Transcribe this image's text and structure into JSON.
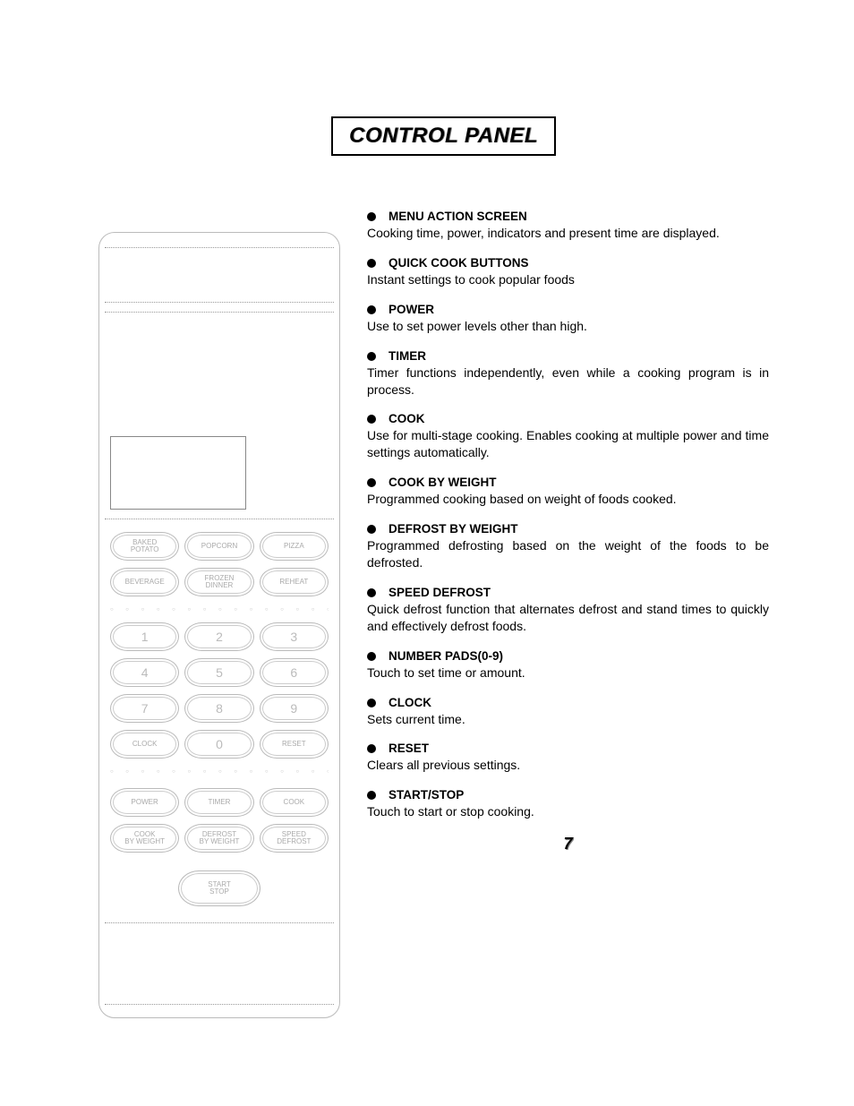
{
  "page_number": "7",
  "title": "CONTROL PANEL",
  "panel": {
    "quick_cook": [
      "BAKED\nPOTATO",
      "POPCORN",
      "PIZZA",
      "BEVERAGE",
      "FROZEN\nDINNER",
      "REHEAT"
    ],
    "numbers_row1": [
      "1",
      "2",
      "3"
    ],
    "numbers_row2": [
      "4",
      "5",
      "6"
    ],
    "numbers_row3": [
      "7",
      "8",
      "9"
    ],
    "clock": "CLOCK",
    "zero": "0",
    "reset": "RESET",
    "func_row1": [
      "POWER",
      "TIMER",
      "COOK"
    ],
    "func_row2": [
      "COOK\nBY WEIGHT",
      "DEFROST\nBY WEIGHT",
      "SPEED\nDEFROST"
    ],
    "start_stop": "START\nSTOP"
  },
  "features": [
    {
      "title": "MENU ACTION SCREEN",
      "desc": "Cooking time, power, indicators and present time are displayed."
    },
    {
      "title": "QUICK COOK BUTTONS",
      "desc": "Instant settings to cook popular foods"
    },
    {
      "title": "POWER",
      "desc": "Use to set power levels other than high."
    },
    {
      "title": "TIMER",
      "desc": "Timer functions independently, even while a cooking program is in process."
    },
    {
      "title": "COOK",
      "desc": "Use for multi-stage cooking.  Enables cooking at multiple power and time settings automatically."
    },
    {
      "title": "COOK BY WEIGHT",
      "desc": "Programmed cooking based on weight of foods cooked."
    },
    {
      "title": "DEFROST BY WEIGHT",
      "desc": "Programmed defrosting based on the weight of the foods to be defrosted."
    },
    {
      "title": "SPEED DEFROST",
      "desc": "Quick defrost function that alternates defrost and stand times to quickly and effectively defrost foods."
    },
    {
      "title": "NUMBER PADS(0-9)",
      "desc": "Touch to set time or amount."
    },
    {
      "title": "CLOCK",
      "desc": "Sets current time."
    },
    {
      "title": "RESET",
      "desc": "Clears all previous settings."
    },
    {
      "title": "START/STOP",
      "desc": "Touch to start or stop cooking."
    }
  ]
}
